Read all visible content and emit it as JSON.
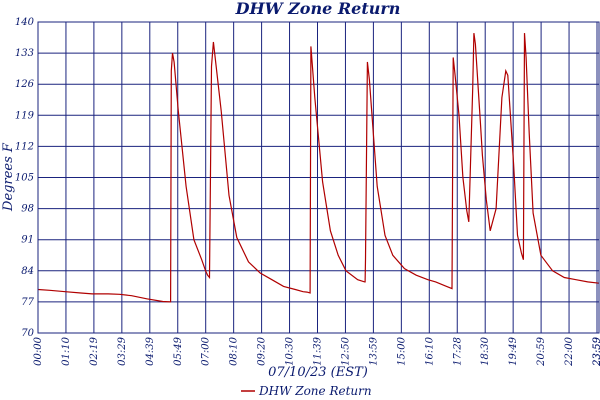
{
  "chart_data": {
    "type": "line",
    "title": "DHW Zone Return",
    "xlabel": "07/10/23 (EST)",
    "ylabel": "Degrees F",
    "ylim": [
      70,
      140
    ],
    "yticks": [
      "140",
      "133",
      "126",
      "119",
      "112",
      "105",
      "98",
      "91",
      "84",
      "77",
      "70"
    ],
    "xlim": [
      "00:00",
      "23:59"
    ],
    "xticks": [
      "00:00",
      "01:10",
      "02:19",
      "03:29",
      "04:39",
      "05:49",
      "07:00",
      "08:10",
      "09:20",
      "10:30",
      "11:39",
      "12:50",
      "13:59",
      "15:00",
      "16:10",
      "17:28",
      "18:30",
      "19:49",
      "20:59",
      "22:00",
      "23:59",
      "23:59"
    ],
    "grid": true,
    "legend_position": "bottom-center",
    "series": [
      {
        "name": "DHW Zone Return",
        "color": "#b00000",
        "x": [
          "00:00",
          "00:30",
          "01:10",
          "01:50",
          "02:19",
          "03:00",
          "03:29",
          "04:00",
          "04:39",
          "05:20",
          "05:40",
          "05:42",
          "05:45",
          "05:49",
          "06:00",
          "06:20",
          "06:40",
          "07:00",
          "07:10",
          "07:15",
          "07:20",
          "07:25",
          "07:30",
          "07:50",
          "08:10",
          "08:30",
          "09:00",
          "09:30",
          "10:00",
          "10:30",
          "11:00",
          "11:20",
          "11:30",
          "11:38",
          "11:40",
          "11:50",
          "12:10",
          "12:30",
          "12:50",
          "13:10",
          "13:40",
          "13:58",
          "13:59",
          "14:00",
          "14:05",
          "14:10",
          "14:30",
          "14:50",
          "15:10",
          "15:40",
          "16:10",
          "16:40",
          "17:00",
          "17:28",
          "17:42",
          "17:45",
          "17:50",
          "18:00",
          "18:10",
          "18:20",
          "18:25",
          "18:35",
          "18:38",
          "18:42",
          "18:55",
          "19:00",
          "19:10",
          "19:20",
          "19:35",
          "19:50",
          "20:00",
          "20:05",
          "20:20",
          "20:30",
          "20:40",
          "20:45",
          "20:48",
          "20:52",
          "21:00",
          "21:10",
          "21:30",
          "22:00",
          "22:30",
          "23:00",
          "23:30",
          "23:59"
        ],
        "y": [
          79.8,
          79.6,
          79.3,
          79.0,
          78.8,
          78.8,
          78.7,
          78.4,
          77.7,
          77.1,
          77.0,
          129,
          133,
          131,
          120,
          103,
          91,
          86.5,
          84,
          83,
          82.5,
          130,
          135.5,
          120,
          101,
          91.5,
          86,
          83.5,
          82,
          80.5,
          79.8,
          79.3,
          79.2,
          79,
          134.5,
          123,
          104,
          93,
          87.5,
          84,
          82,
          81.5,
          81.5,
          86.5,
          131,
          127,
          103,
          92,
          87.5,
          84.5,
          83,
          82,
          81.5,
          80.5,
          80,
          132,
          128,
          119,
          105,
          97.5,
          95,
          125,
          137.5,
          135,
          117,
          110,
          100,
          93,
          98,
          123,
          129,
          128,
          108,
          92,
          88,
          86.5,
          137.5,
          132,
          115,
          97,
          87.5,
          84,
          82.5,
          82,
          81.5,
          81.2
        ]
      }
    ]
  }
}
